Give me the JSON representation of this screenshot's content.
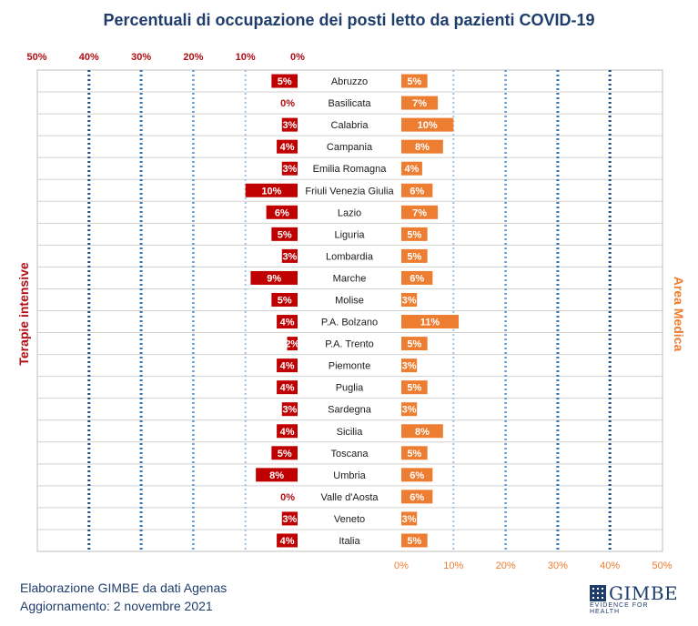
{
  "chart_data": {
    "type": "bar",
    "title": "Percentuali di occupazione dei posti letto da pazienti COVID-19",
    "left_label": "Terapie intensive",
    "right_label": "Area Medica",
    "left_ticks": [
      "50%",
      "40%",
      "30%",
      "20%",
      "10%",
      "0%"
    ],
    "right_ticks": [
      "0%",
      "10%",
      "20%",
      "30%",
      "40%",
      "50%"
    ],
    "xlim": [
      0,
      50
    ],
    "colors": {
      "left": "#c00000",
      "right": "#ed7d31",
      "title": "#1f3d6b"
    },
    "categories": [
      "Abruzzo",
      "Basilicata",
      "Calabria",
      "Campania",
      "Emilia Romagna",
      "Friuli Venezia Giulia",
      "Lazio",
      "Liguria",
      "Lombardia",
      "Marche",
      "Molise",
      "P.A. Bolzano",
      "P.A. Trento",
      "Piemonte",
      "Puglia",
      "Sardegna",
      "Sicilia",
      "Toscana",
      "Umbria",
      "Valle d'Aosta",
      "Veneto",
      "Italia"
    ],
    "series": [
      {
        "name": "Terapie intensive",
        "values": [
          5,
          0,
          3,
          4,
          3,
          10,
          6,
          5,
          3,
          9,
          5,
          4,
          2,
          4,
          4,
          3,
          4,
          5,
          8,
          0,
          3,
          4
        ],
        "labels": [
          "5%",
          "0%",
          "3%",
          "4%",
          "3%",
          "10%",
          "6%",
          "5%",
          "3%",
          "9%",
          "5%",
          "4%",
          "2%",
          "4%",
          "4%",
          "3%",
          "4%",
          "5%",
          "8%",
          "0%",
          "3%",
          "4%"
        ]
      },
      {
        "name": "Area Medica",
        "values": [
          5,
          7,
          10,
          8,
          4,
          6,
          7,
          5,
          5,
          6,
          3,
          11,
          5,
          3,
          5,
          3,
          8,
          5,
          6,
          6,
          3,
          5
        ],
        "labels": [
          "5%",
          "7%",
          "10%",
          "8%",
          "4%",
          "6%",
          "7%",
          "5%",
          "5%",
          "6%",
          "3%",
          "11%",
          "5%",
          "3%",
          "5%",
          "3%",
          "8%",
          "5%",
          "6%",
          "6%",
          "3%",
          "5%"
        ]
      }
    ]
  },
  "footer": {
    "line1": "Elaborazione GIMBE da dati Agenas",
    "line2": "Aggiornamento: 2 novembre 2021"
  },
  "logo": {
    "name": "GIMBE",
    "tagline": "EVIDENCE FOR HEALTH"
  }
}
